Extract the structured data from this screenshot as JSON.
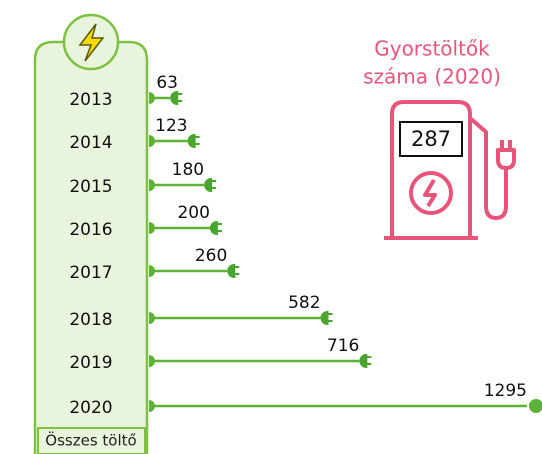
{
  "chart_data": {
    "type": "bar",
    "orientation": "horizontal",
    "category_label": "Összes töltő",
    "categories": [
      "2013",
      "2014",
      "2015",
      "2016",
      "2017",
      "2018",
      "2019",
      "2020"
    ],
    "values": [
      63,
      123,
      180,
      200,
      260,
      582,
      716,
      1295
    ],
    "color": "#5cb338",
    "annotation": {
      "lines": [
        "Gyorstöltők",
        "száma (2020)"
      ],
      "value": 287,
      "color": "#e8557a"
    }
  }
}
